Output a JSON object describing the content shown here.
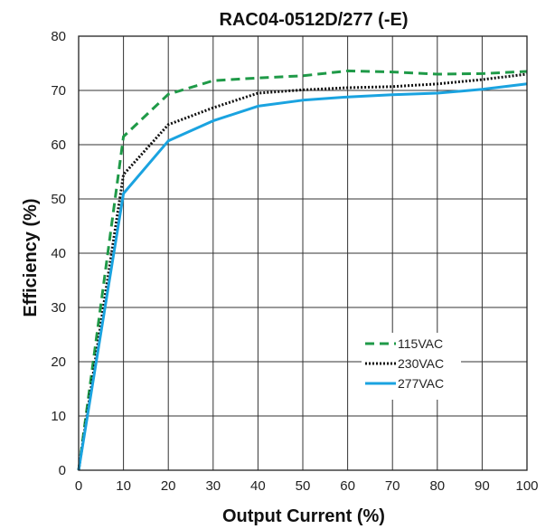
{
  "chart_data": {
    "type": "line",
    "title": "RAC04-0512D/277 (-E)",
    "xlabel": "Output Current (%)",
    "ylabel": "Efficiency (%)",
    "xlim": [
      0,
      100
    ],
    "ylim": [
      0,
      80
    ],
    "xticks": [
      "0",
      "10",
      "20",
      "30",
      "40",
      "50",
      "60",
      "70",
      "80",
      "90",
      "100"
    ],
    "yticks": [
      "0",
      "10",
      "20",
      "30",
      "40",
      "50",
      "60",
      "70",
      "80"
    ],
    "grid": true,
    "legend_position": "bottom-right",
    "series": [
      {
        "name": "115VAC",
        "style": "dashed",
        "color": "#1f9a48",
        "x": [
          0,
          10,
          20,
          30,
          40,
          50,
          60,
          70,
          80,
          90,
          100
        ],
        "y": [
          0,
          61.5,
          69.3,
          71.8,
          72.3,
          72.7,
          73.6,
          73.4,
          73.0,
          73.1,
          73.5
        ]
      },
      {
        "name": "230VAC",
        "style": "dotted",
        "color": "#111111",
        "x": [
          0,
          10,
          20,
          30,
          40,
          50,
          60,
          70,
          80,
          90,
          100
        ],
        "y": [
          0,
          54.5,
          63.7,
          66.8,
          69.5,
          70.1,
          70.5,
          70.7,
          71.2,
          72.0,
          73.0
        ]
      },
      {
        "name": "277VAC",
        "style": "solid",
        "color": "#1aa3e0",
        "x": [
          0,
          10,
          20,
          30,
          40,
          50,
          60,
          70,
          80,
          90,
          100
        ],
        "y": [
          0,
          51.0,
          60.7,
          64.4,
          67.1,
          68.2,
          68.8,
          69.2,
          69.5,
          70.2,
          71.2
        ]
      }
    ]
  }
}
